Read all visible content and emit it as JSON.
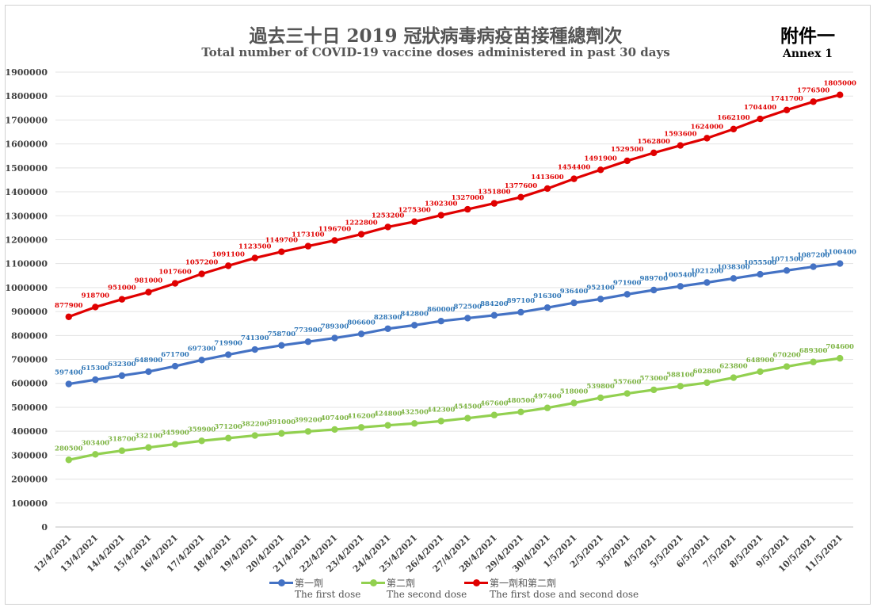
{
  "header": {
    "title_zh": "過去三十日 2019 冠狀病毒病疫苗接種總劑次",
    "title_en": "Total number of COVID-19 vaccine doses administered in past 30 days",
    "annex_zh": "附件一",
    "annex_en": "Annex 1"
  },
  "chart_data": {
    "type": "line",
    "title": "Total number of COVID-19 vaccine doses administered in past 30 days",
    "categories": [
      "12/4/2021",
      "13/4/2021",
      "14/4/2021",
      "15/4/2021",
      "16/4/2021",
      "17/4/2021",
      "18/4/2021",
      "19/4/2021",
      "20/4/2021",
      "21/4/2021",
      "22/4/2021",
      "23/4/2021",
      "24/4/2021",
      "25/4/2021",
      "26/4/2021",
      "27/4/2021",
      "28/4/2021",
      "29/4/2021",
      "30/4/2021",
      "1/5/2021",
      "2/5/2021",
      "3/5/2021",
      "4/5/2021",
      "5/5/2021",
      "6/5/2021",
      "7/5/2021",
      "8/5/2021",
      "9/5/2021",
      "10/5/2021",
      "11/5/2021"
    ],
    "ylim": [
      0,
      1900000
    ],
    "yticks": [
      0,
      100000,
      200000,
      300000,
      400000,
      500000,
      600000,
      700000,
      800000,
      900000,
      1000000,
      1100000,
      1200000,
      1300000,
      1400000,
      1500000,
      1600000,
      1700000,
      1800000,
      1900000
    ],
    "grid": true,
    "legend_position": "bottom",
    "series": [
      {
        "name": "第一劑",
        "name_en": "The first dose",
        "color": "#4472c4",
        "label_color": "#2e75b6",
        "values": [
          597400,
          615300,
          632300,
          648900,
          671700,
          697300,
          719900,
          741300,
          758700,
          773900,
          789300,
          806600,
          828300,
          842800,
          860000,
          872500,
          884200,
          897100,
          916300,
          936400,
          952100,
          971900,
          989700,
          1005400,
          1021200,
          1038300,
          1055500,
          1071500,
          1087200,
          1100400
        ]
      },
      {
        "name": "第二劑",
        "name_en": "The second dose",
        "color": "#92d050",
        "label_color": "#7cb342",
        "values": [
          280500,
          303400,
          318700,
          332100,
          345900,
          359900,
          371200,
          382200,
          391000,
          399200,
          407400,
          416200,
          424800,
          432500,
          442300,
          454500,
          467600,
          480500,
          497400,
          518000,
          539800,
          557600,
          573000,
          588100,
          602800,
          623800,
          648900,
          670200,
          689300,
          704600
        ]
      },
      {
        "name": "第一劑和第二劑",
        "name_en": "The first dose and second dose",
        "color": "#e00000",
        "label_color": "#e00000",
        "values": [
          877900,
          918700,
          951000,
          981000,
          1017600,
          1057200,
          1091100,
          1123500,
          1149700,
          1173100,
          1196700,
          1222800,
          1253200,
          1275300,
          1302300,
          1327000,
          1351800,
          1377600,
          1413600,
          1454400,
          1491900,
          1529500,
          1562800,
          1593600,
          1624000,
          1662100,
          1704400,
          1741700,
          1776500,
          1805000
        ]
      }
    ]
  }
}
